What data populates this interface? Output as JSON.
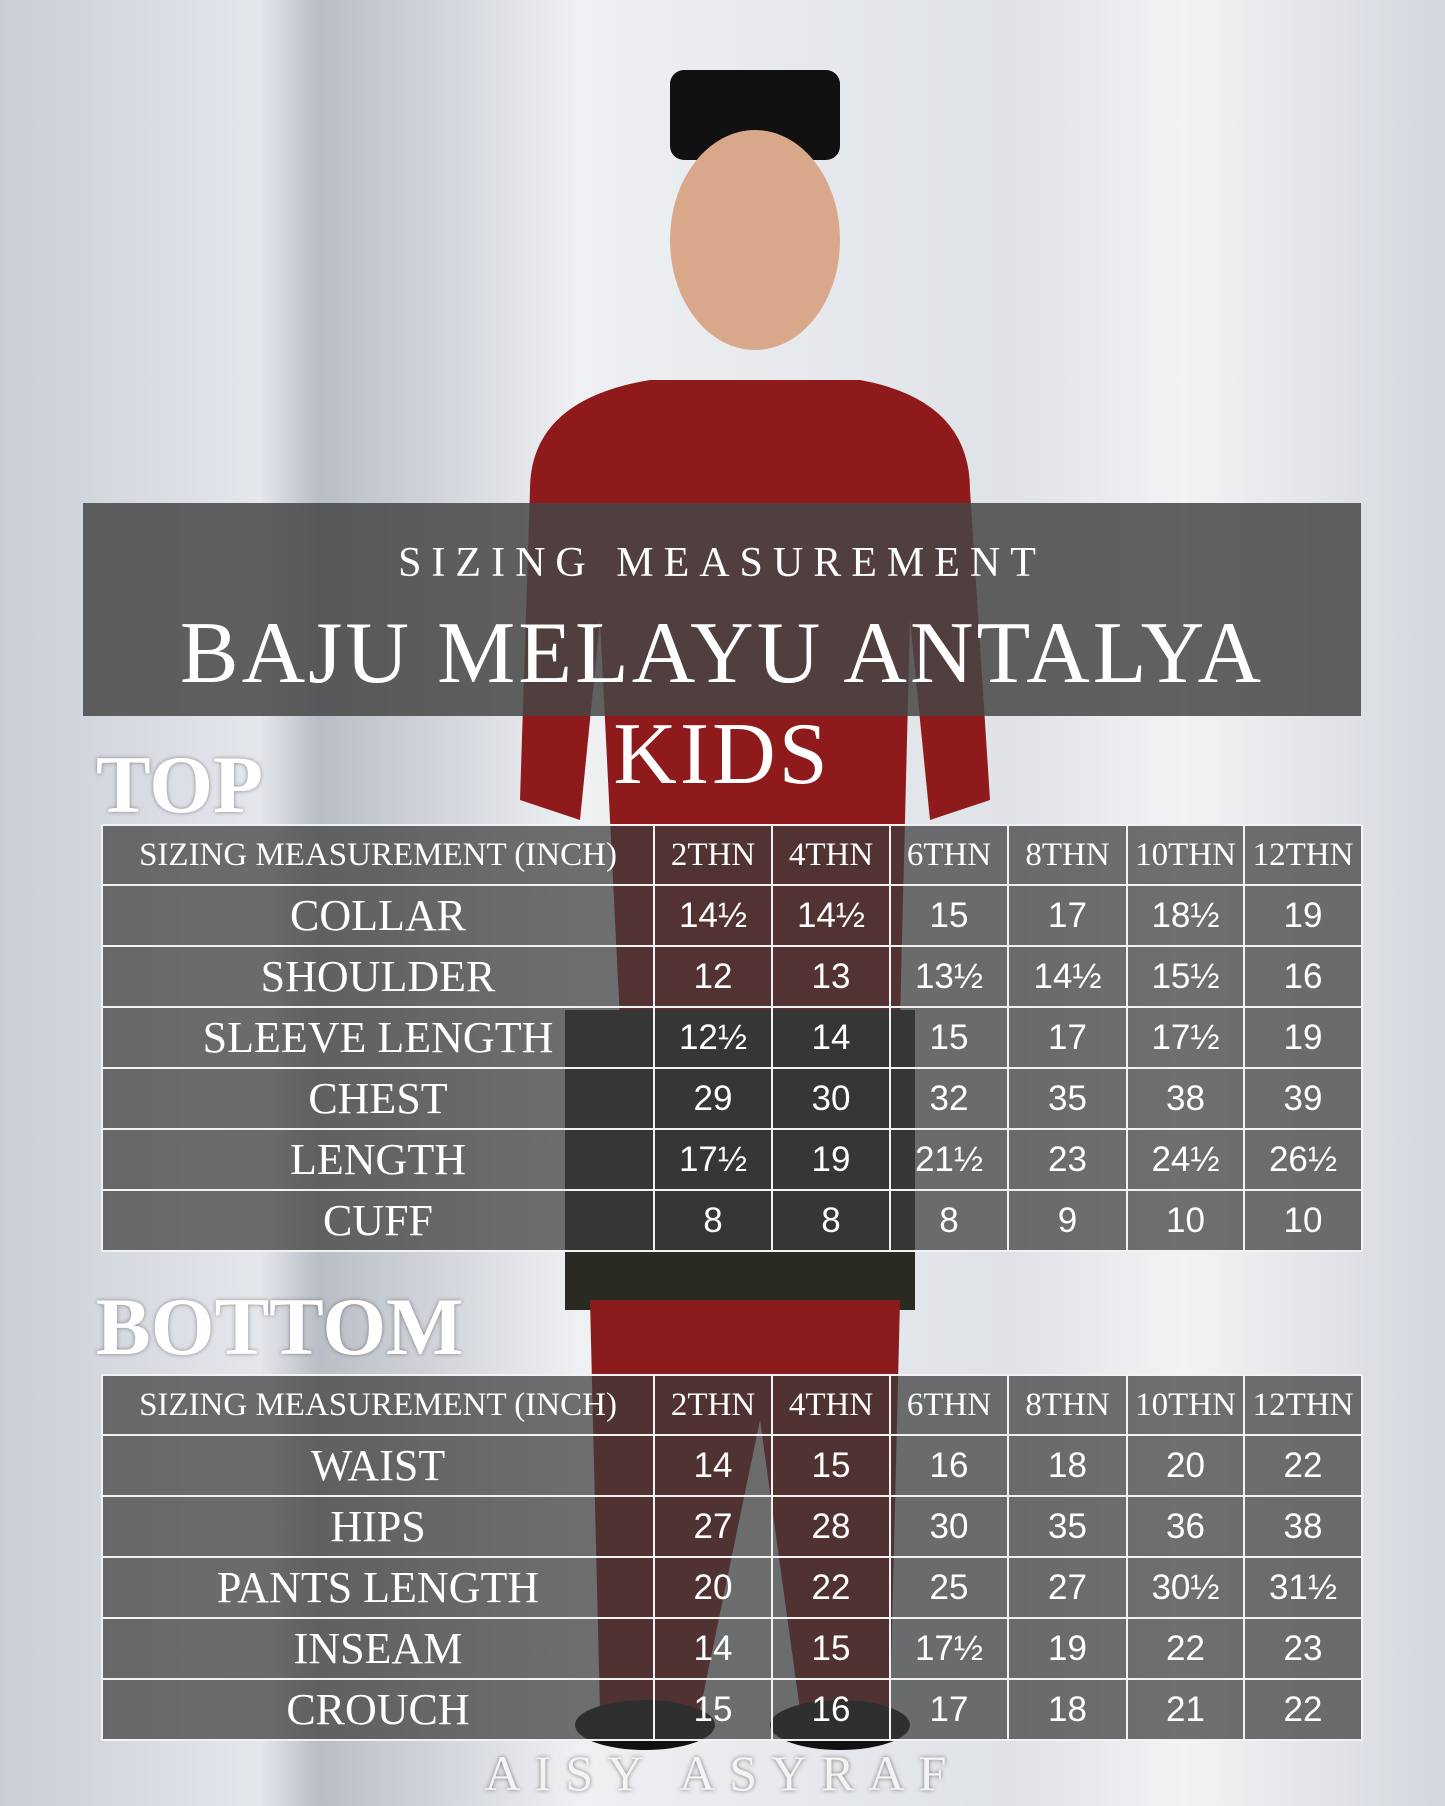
{
  "header": {
    "subtitle": "SIZING MEASUREMENT",
    "title": "BAJU MELAYU ANTALYA KIDS"
  },
  "top": {
    "title": "TOP",
    "columns": [
      "SIZING MEASUREMENT (INCH)",
      "2THN",
      "4THN",
      "6THN",
      "8THN",
      "10THN",
      "12THN"
    ],
    "rows": [
      [
        "COLLAR",
        "14½",
        "14½",
        "15",
        "17",
        "18½",
        "19"
      ],
      [
        "SHOULDER",
        "12",
        "13",
        "13½",
        "14½",
        "15½",
        "16"
      ],
      [
        "SLEEVE LENGTH",
        "12½",
        "14",
        "15",
        "17",
        "17½",
        "19"
      ],
      [
        "CHEST",
        "29",
        "30",
        "32",
        "35",
        "38",
        "39"
      ],
      [
        "LENGTH",
        "17½",
        "19",
        "21½",
        "23",
        "24½",
        "26½"
      ],
      [
        "CUFF",
        "8",
        "8",
        "8",
        "9",
        "10",
        "10"
      ]
    ]
  },
  "bottom": {
    "title": "BOTTOM",
    "columns": [
      "SIZING MEASUREMENT (INCH)",
      "2THN",
      "4THN",
      "6THN",
      "8THN",
      "10THN",
      "12THN"
    ],
    "rows": [
      [
        "WAIST",
        "14",
        "15",
        "16",
        "18",
        "20",
        "22"
      ],
      [
        "HIPS",
        "27",
        "28",
        "30",
        "35",
        "36",
        "38"
      ],
      [
        "PANTS LENGTH",
        "20",
        "22",
        "25",
        "27",
        "30½",
        "31½"
      ],
      [
        "INSEAM",
        "14",
        "15",
        "17½",
        "19",
        "22",
        "23"
      ],
      [
        "CROUCH",
        "15",
        "16",
        "17",
        "18",
        "21",
        "22"
      ]
    ]
  },
  "brand": "AISY ASYRAF"
}
